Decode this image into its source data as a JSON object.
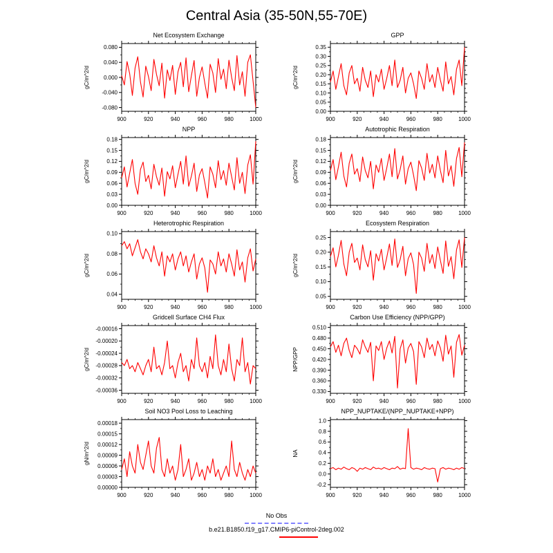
{
  "title": "Central Asia (35-50N,55-70E)",
  "line_color": "#ff0000",
  "x_axis": {
    "ticks": [
      900,
      920,
      940,
      960,
      980,
      1000
    ],
    "minor_step": 5
  },
  "legend": [
    {
      "label": "No Obs",
      "style": "dashed",
      "color": "#8080ff"
    },
    {
      "label": "b.e21.B1850.f19_g17.CMIP6-piControl-2deg.002",
      "style": "solid",
      "color": "#ff0000"
    }
  ],
  "chart_data": [
    {
      "type": "line",
      "title": "Net Ecosystem Exchange",
      "ylabel": "gC/m^2/d",
      "xlabel": "",
      "x_start": 900,
      "x_step": 2,
      "ylim": [
        -0.09,
        0.09
      ],
      "ytick_values": [
        -0.08,
        -0.04,
        0,
        0.04,
        0.08
      ],
      "ytick_labels": [
        "-0.080",
        "-0.040",
        "0.000",
        "0.040",
        "0.080"
      ],
      "values": [
        0.005,
        -0.02,
        0.042,
        0.01,
        -0.048,
        0.025,
        0.055,
        -0.012,
        -0.052,
        0.03,
        0.002,
        -0.035,
        0.048,
        0.008,
        -0.022,
        0.038,
        -0.055,
        0.02,
        -0.008,
        0.032,
        -0.045,
        0.015,
        0.04,
        -0.025,
        0.052,
        -0.038,
        0.005,
        0.045,
        -0.05,
        0.0,
        0.028,
        -0.015,
        -0.055,
        0.035,
        0.012,
        -0.04,
        0.05,
        -0.005,
        0.022,
        -0.03,
        0.046,
        0.0,
        -0.035,
        0.058,
        -0.02,
        0.015,
        -0.05,
        0.04,
        0.06,
        -0.01,
        -0.08
      ]
    },
    {
      "type": "line",
      "title": "GPP",
      "ylabel": "gC/m^2/d",
      "xlabel": "",
      "x_start": 900,
      "x_step": 2,
      "ylim": [
        0.0,
        0.37
      ],
      "ytick_values": [
        0.0,
        0.05,
        0.1,
        0.15,
        0.2,
        0.25,
        0.3,
        0.35
      ],
      "ytick_labels": [
        "0.00",
        "0.05",
        "0.10",
        "0.15",
        "0.20",
        "0.25",
        "0.30",
        "0.35"
      ],
      "values": [
        0.16,
        0.22,
        0.12,
        0.19,
        0.26,
        0.14,
        0.09,
        0.21,
        0.25,
        0.15,
        0.18,
        0.11,
        0.24,
        0.17,
        0.13,
        0.22,
        0.08,
        0.2,
        0.16,
        0.23,
        0.12,
        0.18,
        0.25,
        0.14,
        0.28,
        0.13,
        0.17,
        0.24,
        0.1,
        0.18,
        0.21,
        0.15,
        0.07,
        0.22,
        0.18,
        0.12,
        0.26,
        0.16,
        0.2,
        0.13,
        0.24,
        0.17,
        0.11,
        0.27,
        0.15,
        0.19,
        0.09,
        0.23,
        0.28,
        0.14,
        0.35
      ]
    },
    {
      "type": "line",
      "title": "NPP",
      "ylabel": "gC/m^2/d",
      "xlabel": "",
      "x_start": 900,
      "x_step": 2,
      "ylim": [
        0.0,
        0.185
      ],
      "ytick_values": [
        0.0,
        0.03,
        0.06,
        0.09,
        0.12,
        0.15,
        0.18
      ],
      "ytick_labels": [
        "0.00",
        "0.03",
        "0.06",
        "0.09",
        "0.12",
        "0.15",
        "0.18"
      ],
      "values": [
        0.075,
        0.105,
        0.05,
        0.088,
        0.125,
        0.06,
        0.03,
        0.098,
        0.118,
        0.065,
        0.082,
        0.045,
        0.112,
        0.078,
        0.055,
        0.102,
        0.025,
        0.092,
        0.072,
        0.108,
        0.048,
        0.085,
        0.12,
        0.058,
        0.135,
        0.052,
        0.08,
        0.115,
        0.038,
        0.083,
        0.1,
        0.062,
        0.02,
        0.105,
        0.085,
        0.048,
        0.122,
        0.07,
        0.095,
        0.055,
        0.115,
        0.078,
        0.042,
        0.13,
        0.06,
        0.09,
        0.032,
        0.11,
        0.138,
        0.058,
        0.175
      ]
    },
    {
      "type": "line",
      "title": "Autotrophic Respiration",
      "ylabel": "gC/m^2/d",
      "xlabel": "",
      "x_start": 900,
      "x_step": 2,
      "ylim": [
        0.0,
        0.185
      ],
      "ytick_values": [
        0.0,
        0.03,
        0.06,
        0.09,
        0.12,
        0.15,
        0.18
      ],
      "ytick_labels": [
        "0.00",
        "0.03",
        "0.06",
        "0.09",
        "0.12",
        "0.15",
        "0.18"
      ],
      "values": [
        0.095,
        0.125,
        0.07,
        0.105,
        0.145,
        0.08,
        0.05,
        0.115,
        0.14,
        0.085,
        0.1,
        0.065,
        0.132,
        0.095,
        0.075,
        0.12,
        0.045,
        0.11,
        0.09,
        0.128,
        0.068,
        0.102,
        0.14,
        0.078,
        0.155,
        0.072,
        0.098,
        0.135,
        0.058,
        0.1,
        0.118,
        0.082,
        0.04,
        0.122,
        0.102,
        0.068,
        0.142,
        0.088,
        0.112,
        0.075,
        0.135,
        0.095,
        0.062,
        0.15,
        0.08,
        0.108,
        0.052,
        0.128,
        0.158,
        0.078,
        0.172
      ]
    },
    {
      "type": "line",
      "title": "Heterotrophic Respiration",
      "ylabel": "gC/m^2/d",
      "xlabel": "",
      "x_start": 900,
      "x_step": 2,
      "ylim": [
        0.035,
        0.102
      ],
      "ytick_values": [
        0.04,
        0.06,
        0.08,
        0.1
      ],
      "ytick_labels": [
        "0.04",
        "0.06",
        "0.08",
        "0.10"
      ],
      "values": [
        0.088,
        0.092,
        0.085,
        0.09,
        0.078,
        0.086,
        0.094,
        0.082,
        0.075,
        0.085,
        0.08,
        0.072,
        0.088,
        0.076,
        0.068,
        0.082,
        0.058,
        0.078,
        0.072,
        0.08,
        0.064,
        0.075,
        0.082,
        0.068,
        0.078,
        0.062,
        0.072,
        0.08,
        0.055,
        0.07,
        0.076,
        0.066,
        0.042,
        0.074,
        0.07,
        0.06,
        0.082,
        0.068,
        0.075,
        0.062,
        0.08,
        0.07,
        0.058,
        0.084,
        0.064,
        0.072,
        0.052,
        0.076,
        0.085,
        0.063,
        0.075
      ]
    },
    {
      "type": "line",
      "title": "Ecosystem Respiration",
      "ylabel": "gC/m^2/d",
      "xlabel": "",
      "x_start": 900,
      "x_step": 2,
      "ylim": [
        0.04,
        0.27
      ],
      "ytick_values": [
        0.05,
        0.1,
        0.15,
        0.2,
        0.25
      ],
      "ytick_labels": [
        "0.05",
        "0.10",
        "0.15",
        "0.20",
        "0.25"
      ],
      "values": [
        0.185,
        0.215,
        0.15,
        0.19,
        0.24,
        0.16,
        0.12,
        0.2,
        0.23,
        0.165,
        0.18,
        0.14,
        0.225,
        0.175,
        0.15,
        0.205,
        0.105,
        0.195,
        0.17,
        0.21,
        0.14,
        0.182,
        0.228,
        0.155,
        0.245,
        0.148,
        0.175,
        0.22,
        0.12,
        0.178,
        0.198,
        0.158,
        0.06,
        0.2,
        0.18,
        0.135,
        0.23,
        0.162,
        0.192,
        0.145,
        0.218,
        0.172,
        0.128,
        0.238,
        0.152,
        0.185,
        0.11,
        0.208,
        0.242,
        0.148,
        0.25
      ]
    },
    {
      "type": "line",
      "title": "Gridcell Surface CH4 Flux",
      "ylabel": "gC/m^2/d",
      "xlabel": "",
      "x_start": 900,
      "x_step": 2,
      "ylim": [
        -0.00037,
        -0.00015
      ],
      "ytick_values": [
        -0.00036,
        -0.00032,
        -0.00028,
        -0.00024,
        -0.0002,
        -0.00016
      ],
      "ytick_labels": [
        "-0.00036",
        "-0.00032",
        "-0.00028",
        "-0.00024",
        "-0.00020",
        "-0.00016"
      ],
      "values": [
        -0.00027,
        -0.00028,
        -0.00026,
        -0.00029,
        -0.00028,
        -0.0003,
        -0.00027,
        -0.00029,
        -0.00031,
        -0.00028,
        -0.00026,
        -0.0003,
        -0.00022,
        -0.00029,
        -0.00028,
        -0.00031,
        -0.00027,
        -0.0002,
        -0.00029,
        -0.00028,
        -0.00032,
        -0.00027,
        -0.00024,
        -0.0003,
        -0.00028,
        -0.00033,
        -0.00026,
        -0.00029,
        -0.00019,
        -0.00028,
        -0.0003,
        -0.00027,
        -0.00032,
        -0.00025,
        -0.00029,
        -0.00018,
        -0.00028,
        -0.00031,
        -0.00026,
        -0.0003,
        -0.00021,
        -0.00029,
        -0.00033,
        -0.00026,
        -0.00028,
        -0.00019,
        -0.0003,
        -0.00027,
        -0.00034,
        -0.00028,
        -0.00029
      ]
    },
    {
      "type": "line",
      "title": "Carbon Use Efficiency (NPP/GPP)",
      "ylabel": "NPP/GPP",
      "xlabel": "",
      "x_start": 900,
      "x_step": 2,
      "ylim": [
        0.325,
        0.515
      ],
      "ytick_values": [
        0.33,
        0.36,
        0.39,
        0.42,
        0.45,
        0.48,
        0.51
      ],
      "ytick_labels": [
        "0.330",
        "0.360",
        "0.390",
        "0.420",
        "0.450",
        "0.480",
        "0.510"
      ],
      "values": [
        0.455,
        0.47,
        0.44,
        0.46,
        0.43,
        0.465,
        0.48,
        0.445,
        0.425,
        0.46,
        0.45,
        0.435,
        0.475,
        0.455,
        0.44,
        0.468,
        0.36,
        0.458,
        0.445,
        0.47,
        0.42,
        0.452,
        0.472,
        0.438,
        0.485,
        0.34,
        0.45,
        0.475,
        0.41,
        0.452,
        0.465,
        0.442,
        0.35,
        0.47,
        0.455,
        0.425,
        0.48,
        0.448,
        0.462,
        0.43,
        0.472,
        0.452,
        0.415,
        0.488,
        0.435,
        0.458,
        0.37,
        0.468,
        0.49,
        0.432,
        0.46
      ]
    },
    {
      "type": "line",
      "title": "Soil NO3 Pool Loss to Leaching",
      "ylabel": "gN/m^2/d",
      "xlabel": "",
      "x_start": 900,
      "x_step": 2,
      "ylim": [
        0.0,
        0.00019
      ],
      "ytick_values": [
        0.0,
        3e-05,
        6e-05,
        9e-05,
        0.00012,
        0.00015,
        0.00018
      ],
      "ytick_labels": [
        "0.00000",
        "0.00003",
        "0.00006",
        "0.00009",
        "0.00012",
        "0.00015",
        "0.00018"
      ],
      "values": [
        5e-05,
        8e-05,
        3e-05,
        0.0001,
        6e-05,
        4e-05,
        0.00012,
        7e-05,
        5e-05,
        9e-05,
        0.00013,
        6e-05,
        4e-05,
        0.00011,
        0.00014,
        5e-05,
        3e-05,
        8e-05,
        4e-05,
        6e-05,
        2e-05,
        5e-05,
        0.00012,
        3e-05,
        5e-05,
        8e-05,
        2e-05,
        4e-05,
        7e-05,
        3e-05,
        5e-05,
        2e-05,
        6e-05,
        4e-05,
        8e-05,
        3e-05,
        5e-05,
        2e-05,
        4e-05,
        6e-05,
        3e-05,
        0.00013,
        5e-05,
        3e-05,
        7e-05,
        4e-05,
        2e-05,
        5e-05,
        3e-05,
        6e-05,
        4e-05
      ]
    },
    {
      "type": "line",
      "title": "NPP_NUPTAKE/(NPP_NUPTAKE+NPP)",
      "ylabel": "NA",
      "xlabel": "",
      "x_start": 900,
      "x_step": 2,
      "ylim": [
        -0.25,
        1.02
      ],
      "ytick_values": [
        -0.2,
        0.0,
        0.2,
        0.4,
        0.6,
        0.8,
        1.0
      ],
      "ytick_labels": [
        "-0.2",
        "0.0",
        "0.2",
        "0.4",
        "0.6",
        "0.8",
        "1.0"
      ],
      "values": [
        0.1,
        0.12,
        0.08,
        0.11,
        0.09,
        0.13,
        0.1,
        0.08,
        0.12,
        0.1,
        0.05,
        0.11,
        0.09,
        0.12,
        0.1,
        0.08,
        0.13,
        0.1,
        0.11,
        0.09,
        0.12,
        0.1,
        0.08,
        0.11,
        0.1,
        0.14,
        0.09,
        0.11,
        0.1,
        0.85,
        0.12,
        0.09,
        0.11,
        0.1,
        0.08,
        0.12,
        0.1,
        0.09,
        0.11,
        0.1,
        -0.15,
        0.1,
        0.12,
        0.09,
        0.11,
        0.1,
        0.08,
        0.11,
        0.09,
        0.12,
        0.1
      ]
    }
  ]
}
